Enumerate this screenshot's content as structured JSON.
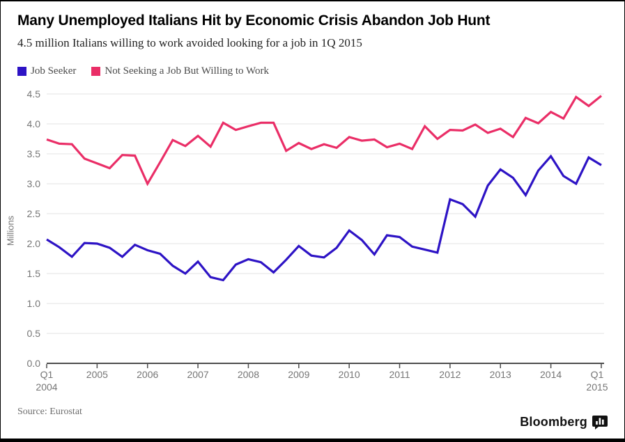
{
  "title": "Many Unemployed Italians Hit by Economic Crisis Abandon Job Hunt",
  "subtitle": "4.5 million Italians willing to work avoided looking for a job in 1Q 2015",
  "source": "Source: Eurostat",
  "brand": "Bloomberg",
  "colors": {
    "job_seeker": "#2d13c5",
    "not_seeking": "#ea2e67",
    "grid": "#e3e3e3",
    "axis_line": "#4d4d4d",
    "axis_text": "#757575"
  },
  "legend": [
    {
      "label": "Job Seeker",
      "color_key": "job_seeker"
    },
    {
      "label": "Not Seeking a Job But Willing to Work",
      "color_key": "not_seeking"
    }
  ],
  "chart_data": {
    "type": "line",
    "title": "Many Unemployed Italians Hit by Economic Crisis Abandon Job Hunt",
    "subtitle": "4.5 million Italians willing to work avoided looking for a job in 1Q 2015",
    "xlabel": "",
    "ylabel": "Millions",
    "ylim": [
      0,
      4.5
    ],
    "grid": true,
    "legend_position": "top-left",
    "x_unit": "quarter",
    "x_start": "Q1 2004",
    "x_end": "Q1 2015",
    "yticks": [
      "0.0",
      "0.5",
      "1.0",
      "1.5",
      "2.0",
      "2.5",
      "3.0",
      "3.5",
      "4.0",
      "4.5"
    ],
    "xticks": [
      {
        "label": "Q1|2004",
        "n": 0
      },
      {
        "label": "2005",
        "n": 4
      },
      {
        "label": "2006",
        "n": 8
      },
      {
        "label": "2007",
        "n": 12
      },
      {
        "label": "2008",
        "n": 16
      },
      {
        "label": "2009",
        "n": 20
      },
      {
        "label": "2010",
        "n": 24
      },
      {
        "label": "2011",
        "n": 28
      },
      {
        "label": "2012",
        "n": 32
      },
      {
        "label": "2013",
        "n": 36
      },
      {
        "label": "2014",
        "n": 40
      },
      {
        "label": "Q1|2015",
        "n": 44
      }
    ],
    "series": [
      {
        "name": "Not Seeking a Job But Willing to Work",
        "color_key": "not_seeking",
        "values": [
          3.74,
          3.67,
          3.66,
          3.42,
          3.34,
          3.26,
          3.48,
          3.47,
          3.0,
          3.36,
          3.73,
          3.63,
          3.8,
          3.62,
          4.02,
          3.9,
          3.96,
          4.02,
          4.02,
          3.55,
          3.68,
          3.58,
          3.66,
          3.6,
          3.78,
          3.72,
          3.74,
          3.61,
          3.67,
          3.58,
          3.96,
          3.75,
          3.9,
          3.89,
          3.99,
          3.85,
          3.92,
          3.78,
          4.1,
          4.01,
          4.2,
          4.09,
          4.45,
          4.3,
          4.47
        ]
      },
      {
        "name": "Job Seeker",
        "color_key": "job_seeker",
        "values": [
          2.07,
          1.94,
          1.78,
          2.01,
          2.0,
          1.93,
          1.78,
          1.98,
          1.89,
          1.83,
          1.63,
          1.5,
          1.7,
          1.44,
          1.39,
          1.65,
          1.74,
          1.69,
          1.52,
          1.73,
          1.96,
          1.8,
          1.77,
          1.93,
          2.22,
          2.06,
          1.82,
          2.14,
          2.11,
          1.95,
          1.9,
          1.85,
          2.74,
          2.66,
          2.45,
          2.97,
          3.24,
          3.1,
          2.81,
          3.22,
          3.46,
          3.13,
          3.0,
          3.44,
          3.31
        ]
      }
    ]
  }
}
